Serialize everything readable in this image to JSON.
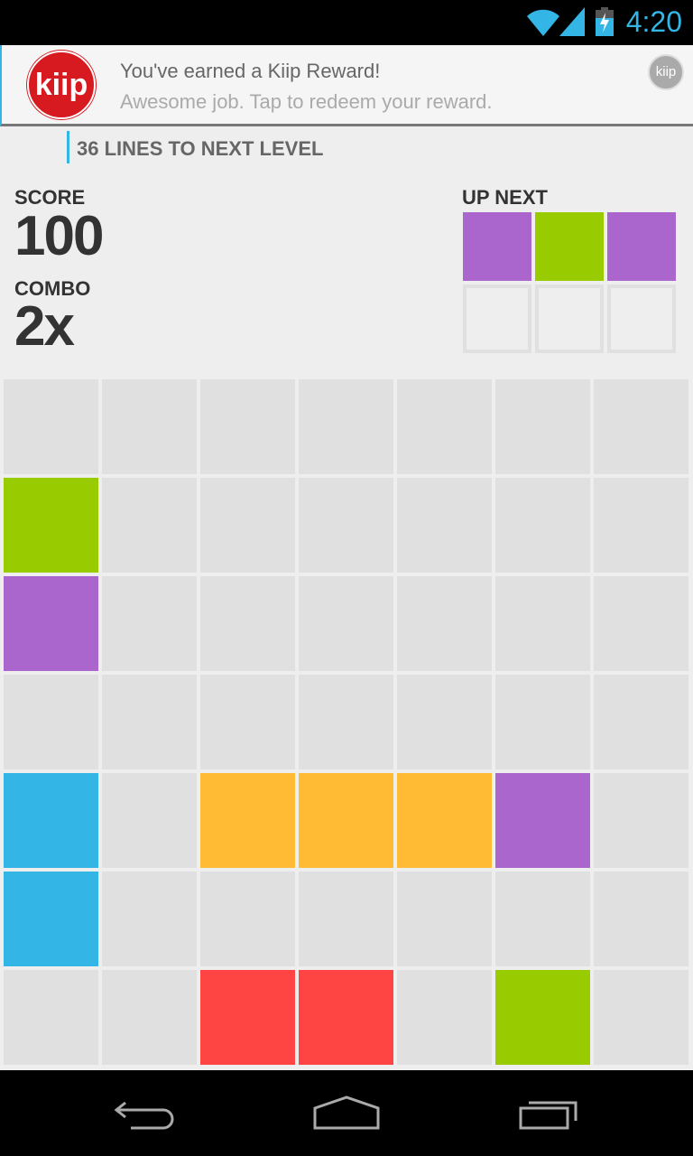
{
  "status_bar": {
    "time": "4:20",
    "icons": [
      "wifi-icon",
      "signal-icon",
      "battery-charging-icon"
    ]
  },
  "notification": {
    "title": "You've earned a Kiip Reward!",
    "body": "Awesome job. Tap to redeem your reward.",
    "logo_text": "kiip"
  },
  "level": {
    "text": "36 LINES TO NEXT LEVEL"
  },
  "score": {
    "label": "SCORE",
    "value": "100"
  },
  "combo": {
    "label": "COMBO",
    "value": "2x"
  },
  "up_next": {
    "label": "UP NEXT",
    "pieces": [
      "purple",
      "green",
      "purple",
      "",
      "",
      ""
    ]
  },
  "colors": {
    "purple": "#aa66cc",
    "green": "#99cc00",
    "blue": "#33b5e5",
    "orange": "#ffbb33",
    "red": "#ff4444",
    "empty": "#e0e0e0",
    "accent": "#33b5e5"
  },
  "board": [
    [
      "",
      "",
      "",
      "",
      "",
      "",
      ""
    ],
    [
      "green",
      "",
      "",
      "",
      "",
      "",
      ""
    ],
    [
      "purple",
      "",
      "",
      "",
      "",
      "",
      ""
    ],
    [
      "",
      "",
      "",
      "",
      "",
      "",
      ""
    ],
    [
      "blue",
      "",
      "orange",
      "orange",
      "orange",
      "purple",
      ""
    ],
    [
      "blue",
      "",
      "",
      "",
      "",
      "",
      ""
    ],
    [
      "",
      "",
      "red",
      "red",
      "",
      "green",
      ""
    ]
  ],
  "nav": [
    "back-icon",
    "home-icon",
    "recent-apps-icon"
  ]
}
